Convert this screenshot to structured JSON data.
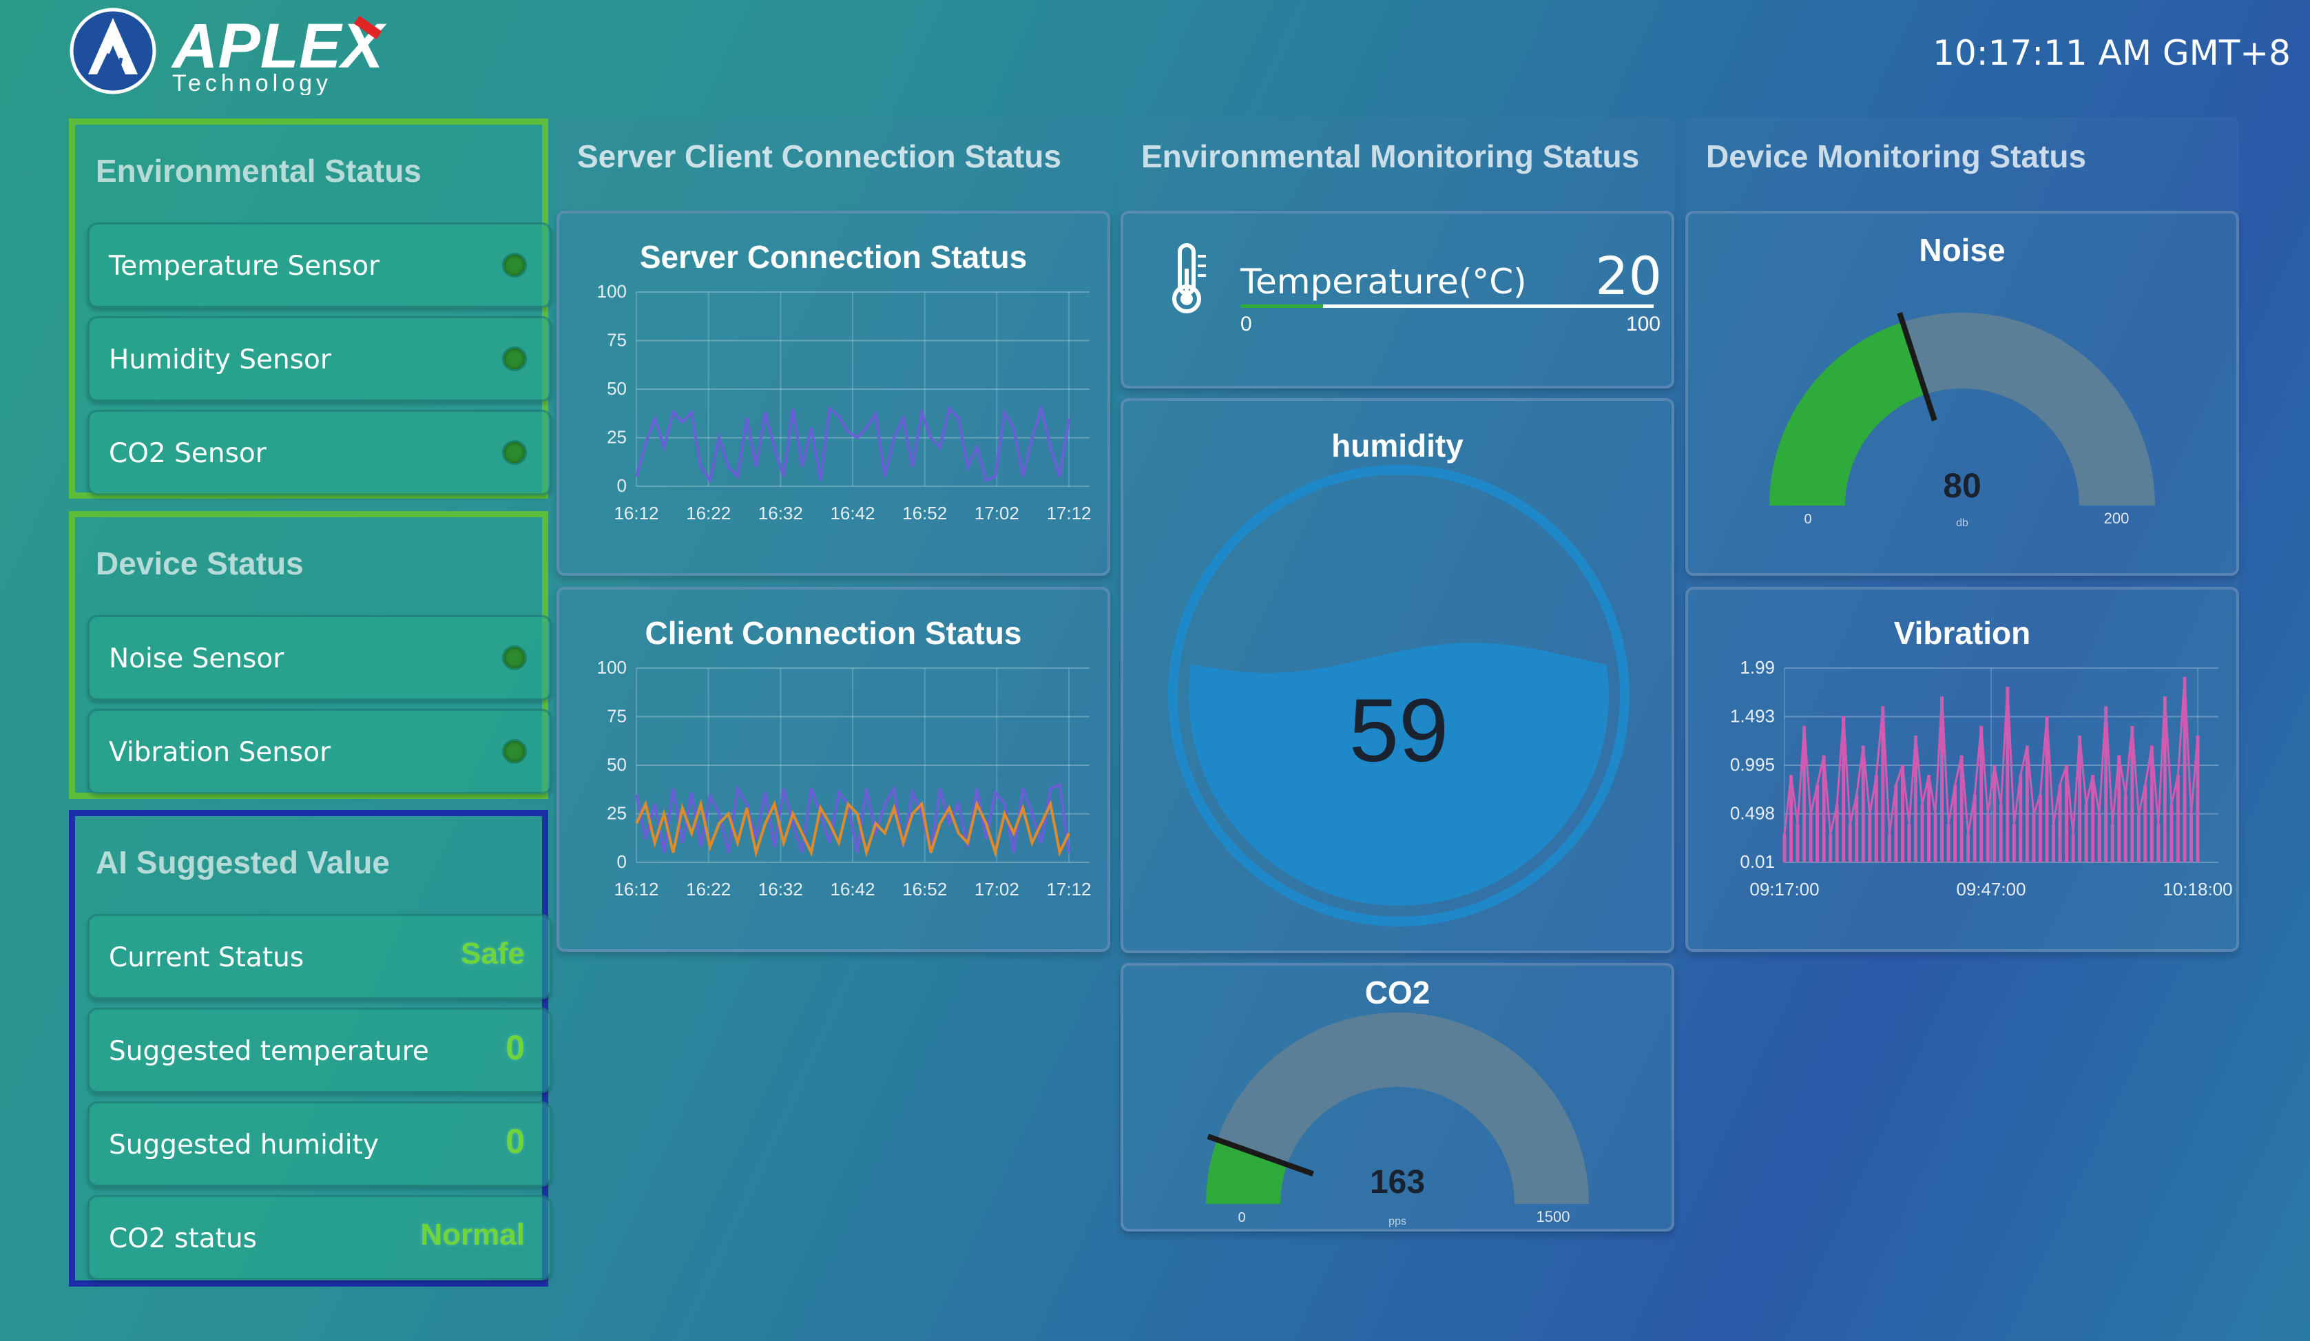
{
  "header": {
    "brand": "APLEX",
    "brand_sub": "Technology",
    "clock": "10:17:11 AM GMT+8"
  },
  "env_status": {
    "title": "Environmental Status",
    "items": [
      {
        "label": "Temperature Sensor",
        "status": "on"
      },
      {
        "label": "Humidity Sensor",
        "status": "on"
      },
      {
        "label": "CO2 Sensor",
        "status": "on"
      }
    ]
  },
  "device_status": {
    "title": "Device Status",
    "items": [
      {
        "label": "Noise Sensor",
        "status": "on"
      },
      {
        "label": "Vibration Sensor",
        "status": "on"
      }
    ]
  },
  "ai": {
    "title": "AI Suggested Value",
    "items": [
      {
        "label": "Current Status",
        "value": "Safe"
      },
      {
        "label": "Suggested temperature",
        "value": "0"
      },
      {
        "label": "Suggested humidity",
        "value": "0"
      },
      {
        "label": "CO2 status",
        "value": "Normal"
      }
    ]
  },
  "columns": {
    "server_client": "Server Client Connection Status",
    "env_monitoring": "Environmental Monitoring Status",
    "device_monitoring": "Device Monitoring Status"
  },
  "temperature": {
    "label": "Temperature(°C)",
    "value": "20",
    "min": "0",
    "max": "100",
    "level": 0.2
  },
  "humidity": {
    "title": "humidity",
    "value": "59",
    "level": 0.59
  },
  "co2": {
    "title": "CO2",
    "value": "163",
    "min": "0",
    "max": "1500",
    "unit": "pps",
    "level": 0.109
  },
  "noise": {
    "title": "Noise",
    "value": "80",
    "min": "0",
    "max": "200",
    "unit": "db",
    "level": 0.4
  },
  "colors": {
    "green": "#5bbd3a",
    "blue_border": "#1d2fa8",
    "gauge_fill": "#2eab3a",
    "gauge_track": "#5c7f98",
    "line_purple": "#6a5fd6",
    "line_orange": "#e08a2a",
    "vibration": "#d15bb0",
    "water": "#1e88c8"
  },
  "chart_data": [
    {
      "type": "line",
      "title": "Server Connection Status",
      "ylim": [
        0,
        100
      ],
      "yticks": [
        "100",
        "75",
        "50",
        "25",
        "0"
      ],
      "xticks": [
        "16:12",
        "16:22",
        "16:32",
        "16:42",
        "16:52",
        "17:02",
        "17:12"
      ],
      "series": [
        {
          "values": [
            5,
            22,
            35,
            20,
            38,
            33,
            38,
            10,
            3,
            25,
            10,
            5,
            35,
            10,
            38,
            20,
            5,
            40,
            10,
            30,
            3,
            40,
            36,
            28,
            25,
            30,
            37,
            5,
            25,
            35,
            10,
            38,
            25,
            20,
            40,
            35,
            10,
            20,
            3,
            5,
            38,
            30,
            5,
            25,
            40,
            20,
            5,
            35
          ]
        }
      ]
    },
    {
      "type": "line",
      "title": "Client Connection Status",
      "ylim": [
        0,
        100
      ],
      "yticks": [
        "100",
        "75",
        "50",
        "25",
        "0"
      ],
      "xticks": [
        "16:12",
        "16:22",
        "16:32",
        "16:42",
        "16:52",
        "17:02",
        "17:12"
      ],
      "series": [
        {
          "values": [
            35,
            12,
            30,
            5,
            38,
            10,
            36,
            8,
            34,
            25,
            5,
            38,
            30,
            12,
            36,
            8,
            38,
            20,
            5,
            38,
            25,
            10,
            36,
            30,
            5,
            38,
            15,
            30,
            38,
            8,
            36,
            25,
            5,
            38,
            20,
            30,
            8,
            38,
            12,
            36,
            30,
            5,
            38,
            25,
            10,
            38,
            40,
            5
          ]
        },
        {
          "values": [
            20,
            30,
            10,
            25,
            5,
            28,
            15,
            30,
            8,
            20,
            25,
            10,
            28,
            5,
            20,
            30,
            10,
            25,
            15,
            5,
            28,
            20,
            10,
            30,
            25,
            5,
            20,
            15,
            28,
            10,
            25,
            30,
            5,
            20,
            28,
            15,
            10,
            30,
            20,
            5,
            25,
            15,
            28,
            10,
            20,
            30,
            5,
            15
          ]
        }
      ]
    },
    {
      "type": "area",
      "title": "Vibration",
      "ylim": [
        0.01,
        1.99
      ],
      "yticks": [
        "1.99",
        "1.493",
        "0.995",
        "0.498",
        "0.01"
      ],
      "xticks": [
        "09:17:00",
        "09:47:00",
        "10:18:00"
      ],
      "series": [
        {
          "values": [
            0.3,
            0.9,
            0.4,
            1.4,
            0.5,
            0.8,
            1.1,
            0.3,
            0.6,
            1.5,
            0.4,
            0.7,
            1.2,
            0.5,
            0.9,
            1.6,
            0.3,
            0.8,
            1.0,
            0.4,
            1.3,
            0.6,
            0.9,
            0.5,
            1.7,
            0.4,
            0.8,
            1.1,
            0.3,
            0.7,
            1.4,
            0.5,
            1.0,
            0.6,
            1.8,
            0.4,
            0.9,
            1.2,
            0.5,
            0.7,
            1.5,
            0.4,
            0.8,
            1.0,
            0.3,
            1.3,
            0.6,
            0.9,
            0.5,
            1.6,
            0.4,
            1.1,
            0.7,
            1.4,
            0.5,
            0.8,
            1.2,
            0.4,
            1.7,
            0.6,
            0.9,
            1.9,
            0.5,
            1.3
          ]
        }
      ]
    }
  ]
}
